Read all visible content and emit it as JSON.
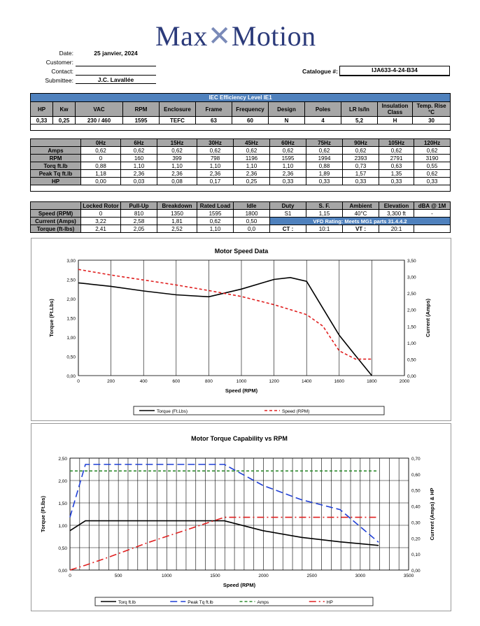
{
  "brand": {
    "name_left": "Max",
    "name_right": "Motion"
  },
  "header": {
    "date_label": "Date:",
    "date": "25 janvier, 2024",
    "customer_label": "Customer:",
    "customer": "",
    "contact_label": "Contact:",
    "contact": "",
    "submittee_label": "Submittee:",
    "submittee": "J.C. Lavallée",
    "catalogue_label": "Catalogue #:",
    "catalogue": "IJA633-4-24-B34"
  },
  "spec": {
    "title": "IEC Efficiency Level IE1",
    "headers": [
      "HP",
      "Kw",
      "VAC",
      "RPM",
      "Enclosure",
      "Frame",
      "Frequency",
      "Design",
      "Poles",
      "LR ls/ln",
      "Insulation Class",
      "Temp. Rise °C"
    ],
    "values": [
      "0,33",
      "0,25",
      "230 / 460",
      "1595",
      "TEFC",
      "63",
      "60",
      "N",
      "4",
      "5,2",
      "H",
      "30"
    ]
  },
  "freq": {
    "headers": [
      "",
      "0Hz",
      "6Hz",
      "15Hz",
      "30Hz",
      "45Hz",
      "60Hz",
      "75Hz",
      "90Hz",
      "105Hz",
      "120Hz"
    ],
    "rows": [
      [
        "Amps",
        "0,62",
        "0,62",
        "0,62",
        "0,62",
        "0,62",
        "0,62",
        "0,62",
        "0,62",
        "0,62",
        "0,62"
      ],
      [
        "RPM",
        "0",
        "160",
        "399",
        "798",
        "1196",
        "1595",
        "1994",
        "2393",
        "2791",
        "3190"
      ],
      [
        "Torq ft.lb",
        "0,88",
        "1,10",
        "1,10",
        "1,10",
        "1,10",
        "1,10",
        "0,88",
        "0,73",
        "0,63",
        "0,55"
      ],
      [
        "Peak Tq ft.lb",
        "1,18",
        "2,36",
        "2,36",
        "2,36",
        "2,36",
        "2,36",
        "1,89",
        "1,57",
        "1,35",
        "0,62"
      ],
      [
        "HP",
        "0,00",
        "0,03",
        "0,08",
        "0,17",
        "0,25",
        "0,33",
        "0,33",
        "0,33",
        "0,33",
        "0,33"
      ]
    ]
  },
  "perf": {
    "headers": [
      "",
      "Locked Rotor",
      "Pull-Up",
      "Breakdown",
      "Rated Load",
      "Idle",
      "Duty",
      "S. F.",
      "Ambient",
      "Elevation",
      "dBA @ 1M"
    ],
    "speed": [
      "Speed (RPM)",
      "0",
      "810",
      "1350",
      "1595",
      "1800",
      "S1",
      "1,15",
      "40°C",
      "3,300 ft",
      "-"
    ],
    "current": [
      "Current (Amps)",
      "3,22",
      "2,58",
      "1,81",
      "0,62",
      "0,50"
    ],
    "vfd": "VFD Rating: Meets MG1 parts 31.4.4.2",
    "torque": [
      "Torque (ft-lbs)",
      "2,41",
      "2,05",
      "2,52",
      "1,10",
      "0,0"
    ],
    "ct_label": "CT :",
    "ct": "10:1",
    "vt_label": "VT :",
    "vt": "20:1"
  },
  "chart_data": [
    {
      "type": "line",
      "title": "Motor Speed Data",
      "xlabel": "Speed (RPM)",
      "ylabel": "Torque (Ft.Lbs)",
      "y2label": "Current (Amps)",
      "xlim": [
        0,
        2000
      ],
      "ylim": [
        0,
        3
      ],
      "y2lim": [
        0,
        3.5
      ],
      "xticks": [
        "0",
        "200",
        "400",
        "600",
        "800",
        "1000",
        "1200",
        "1400",
        "1600",
        "1800",
        "2000"
      ],
      "yticks": [
        "0,00",
        "0,50",
        "1,00",
        "1,50",
        "2,00",
        "2,50",
        "3,00"
      ],
      "y2ticks": [
        "0,00",
        "0,50",
        "1,00",
        "1,50",
        "2,00",
        "2,50",
        "3,00",
        "3,50"
      ],
      "grid": true,
      "legend": "bottom",
      "series": [
        {
          "name": "Torque (Ft.Lbs)",
          "axis": "left",
          "color": "#000000",
          "dash": "",
          "x": [
            0,
            200,
            400,
            600,
            800,
            1000,
            1200,
            1300,
            1400,
            1500,
            1600,
            1700,
            1800
          ],
          "y": [
            2.41,
            2.32,
            2.2,
            2.1,
            2.05,
            2.25,
            2.5,
            2.55,
            2.45,
            1.75,
            1.05,
            0.52,
            0.0
          ]
        },
        {
          "name": "Speed (RPM)",
          "axis": "right",
          "color": "#e02020",
          "dash": "4,3",
          "x": [
            0,
            200,
            400,
            600,
            800,
            1000,
            1200,
            1400,
            1500,
            1600,
            1700,
            1800
          ],
          "y": [
            3.22,
            3.05,
            2.9,
            2.75,
            2.58,
            2.4,
            2.15,
            1.85,
            1.5,
            0.75,
            0.5,
            0.5
          ]
        }
      ]
    },
    {
      "type": "line",
      "title": "Motor Torque Capability vs RPM",
      "xlabel": "Speed (RPM)",
      "ylabel": "Torque (Ft.lbs)",
      "y2label": "Current (Amps) & HP",
      "xlim": [
        0,
        3500
      ],
      "ylim": [
        0,
        2.5
      ],
      "y2lim": [
        0,
        0.7
      ],
      "xticks": [
        "0",
        "500",
        "1000",
        "1500",
        "2000",
        "2500",
        "3000",
        "3500"
      ],
      "yticks": [
        "0,00",
        "0,50",
        "1,00",
        "1,50",
        "2,00",
        "2,50"
      ],
      "y2ticks": [
        "0,00",
        "0,10",
        "0,20",
        "0,30",
        "0,40",
        "0,50",
        "0,60",
        "0,70"
      ],
      "grid": true,
      "legend": "bottom",
      "series": [
        {
          "name": "Torq ft.lb",
          "axis": "left",
          "color": "#000000",
          "dash": "",
          "x": [
            0,
            160,
            399,
            798,
            1196,
            1595,
            1994,
            2393,
            2791,
            3190
          ],
          "y": [
            0.88,
            1.1,
            1.1,
            1.1,
            1.1,
            1.1,
            0.88,
            0.73,
            0.63,
            0.55
          ]
        },
        {
          "name": "Peak Tq ft.lb",
          "axis": "left",
          "color": "#1f3fd6",
          "dash": "10,5",
          "x": [
            0,
            160,
            399,
            798,
            1196,
            1595,
            1994,
            2393,
            2791,
            3190
          ],
          "y": [
            1.18,
            2.36,
            2.36,
            2.36,
            2.36,
            2.36,
            1.89,
            1.57,
            1.35,
            0.62
          ]
        },
        {
          "name": "Amps",
          "axis": "right",
          "color": "#2e8b2e",
          "dash": "4,3",
          "x": [
            0,
            3190
          ],
          "y": [
            0.62,
            0.62
          ]
        },
        {
          "name": "HP",
          "axis": "right",
          "color": "#e02020",
          "dash": "10,4,2,4",
          "x": [
            0,
            160,
            399,
            798,
            1196,
            1595,
            1994,
            2393,
            2791,
            3190
          ],
          "y": [
            0.0,
            0.03,
            0.08,
            0.17,
            0.25,
            0.33,
            0.33,
            0.33,
            0.33,
            0.33
          ]
        }
      ]
    }
  ]
}
